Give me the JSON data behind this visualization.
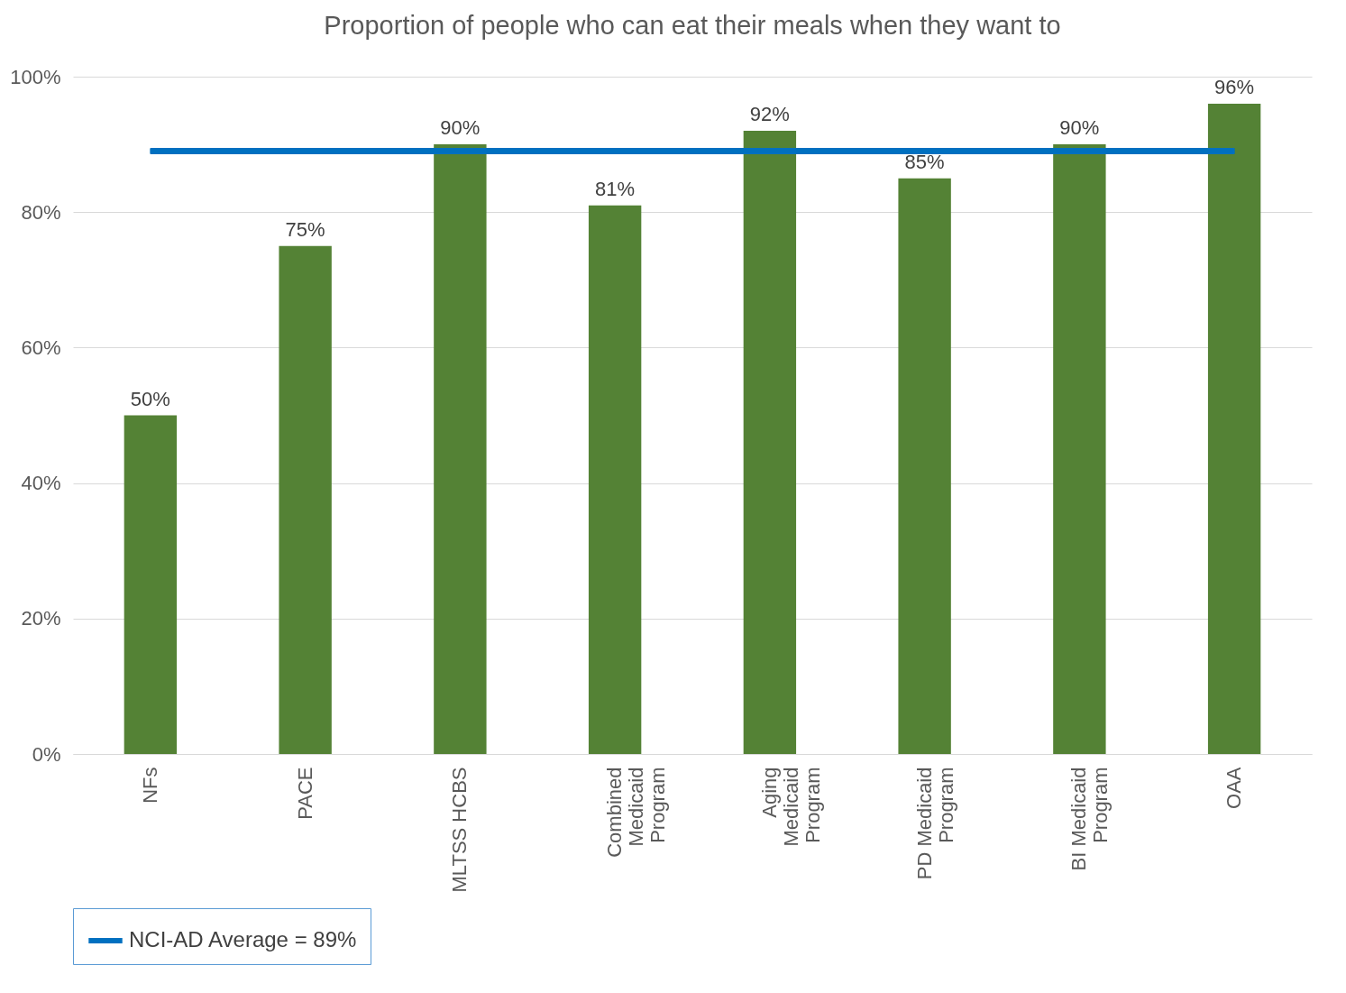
{
  "chart_data": {
    "type": "bar",
    "title": "Proportion of people who can eat their meals when they want to",
    "categories": [
      "NFs",
      "PACE",
      "MLTSS HCBS",
      "Combined Medicaid Program",
      "Aging Medicaid Program",
      "PD Medicaid Program",
      "BI Medicaid Program",
      "OAA"
    ],
    "values": [
      50,
      75,
      90,
      81,
      92,
      85,
      90,
      96
    ],
    "value_labels": [
      "50%",
      "75%",
      "90%",
      "81%",
      "92%",
      "85%",
      "90%",
      "96%"
    ],
    "color": "#548235",
    "ylim": [
      0,
      100
    ],
    "yticks": [
      {
        "value": 0,
        "label": "0%"
      },
      {
        "value": 20,
        "label": "20%"
      },
      {
        "value": 40,
        "label": "40%"
      },
      {
        "value": 60,
        "label": "60%"
      },
      {
        "value": 80,
        "label": "80%"
      },
      {
        "value": 100,
        "label": "100%"
      }
    ],
    "ref_lines": [
      {
        "axis": "y",
        "value": 89,
        "label": "NCI-AD Average = 89%",
        "color": "#0070c0",
        "line_style": "solid"
      }
    ],
    "grid": "y",
    "legend": "bottom"
  }
}
